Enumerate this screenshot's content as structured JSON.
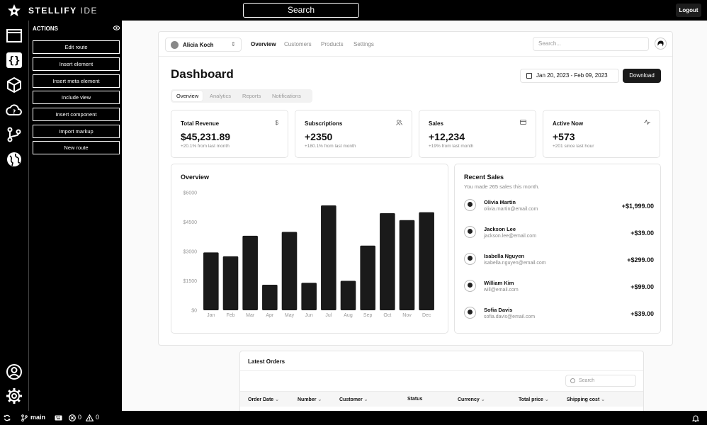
{
  "topbar": {
    "brand_main": "STELLIFY",
    "brand_sub": "IDE",
    "search_label": "Search",
    "logout_label": "Logout"
  },
  "actions": {
    "header": "ACTIONS",
    "items": [
      "Edit route",
      "Insert element",
      "Insert meta element",
      "Include view",
      "Insert component",
      "Import markup",
      "New route"
    ]
  },
  "statusbar": {
    "branch": "main",
    "errors": "0",
    "warnings": "0"
  },
  "dashboard": {
    "user": "Alicia Koch",
    "nav": [
      "Overview",
      "Customers",
      "Products",
      "Settings"
    ],
    "search_placeholder": "Search...",
    "title": "Dashboard",
    "date_range": "Jan 20, 2023 - Feb 09, 2023",
    "download_label": "Download",
    "tabs": [
      "Overview",
      "Analytics",
      "Reports",
      "Notifications"
    ],
    "stats": [
      {
        "label": "Total Revenue",
        "value": "$45,231.89",
        "sub": "+20.1% from last month",
        "icon": "dollar-icon"
      },
      {
        "label": "Subscriptions",
        "value": "+2350",
        "sub": "+180.1% from last month",
        "icon": "users-icon"
      },
      {
        "label": "Sales",
        "value": "+12,234",
        "sub": "+19% from last month",
        "icon": "credit-card-icon"
      },
      {
        "label": "Active Now",
        "value": "+573",
        "sub": "+201 since last hour",
        "icon": "activity-icon"
      }
    ],
    "overview_title": "Overview",
    "recent_title": "Recent Sales",
    "recent_sub": "You made 265 sales this month.",
    "sales": [
      {
        "name": "Olivia Martin",
        "email": "olivia.martin@email.com",
        "amount": "+$1,999.00"
      },
      {
        "name": "Jackson Lee",
        "email": "jackson.lee@email.com",
        "amount": "+$39.00"
      },
      {
        "name": "Isabella Nguyen",
        "email": "isabella.nguyen@email.com",
        "amount": "+$299.00"
      },
      {
        "name": "William Kim",
        "email": "will@email.com",
        "amount": "+$99.00"
      },
      {
        "name": "Sofia Davis",
        "email": "sofia.davis@email.com",
        "amount": "+$39.00"
      }
    ]
  },
  "orders": {
    "title": "Latest Orders",
    "search_placeholder": "Search",
    "columns": [
      "Order Date",
      "Number",
      "Customer",
      "Status",
      "Currency",
      "Total price",
      "Shipping cost"
    ]
  },
  "chart_data": {
    "type": "bar",
    "categories": [
      "Jan",
      "Feb",
      "Mar",
      "Apr",
      "May",
      "Jun",
      "Jul",
      "Aug",
      "Sep",
      "Oct",
      "Nov",
      "Dec"
    ],
    "values": [
      2950,
      2750,
      3800,
      1300,
      4000,
      1400,
      5350,
      1500,
      3300,
      4950,
      4600,
      5000
    ],
    "yticks": [
      "$0",
      "$1500",
      "$3000",
      "$4500",
      "$6000"
    ],
    "ylim": [
      0,
      6000
    ],
    "color": "#1a1a1a"
  }
}
